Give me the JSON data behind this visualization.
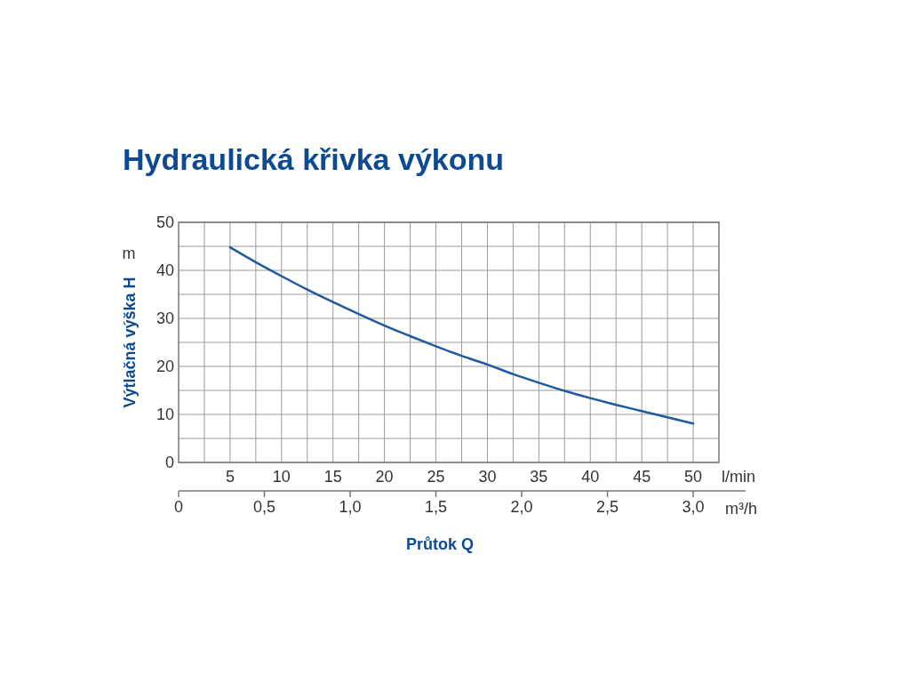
{
  "chart_data": {
    "type": "line",
    "title": "Hydraulická křivka výkonu",
    "xlabel": "Průtok Q",
    "ylabel": "Výtlačná výška H",
    "x2label": "m³/h",
    "annotations": [
      "m",
      "l/min"
    ],
    "series": [
      {
        "color": "#1f5a9c",
        "x": [
          5,
          7.5,
          10,
          12.5,
          15,
          17.5,
          20,
          22.5,
          25,
          27.5,
          30,
          32.5,
          35,
          37.5,
          40,
          42.5,
          45,
          47.5,
          50
        ],
        "values": [
          44.8,
          41.7,
          38.8,
          36,
          33.4,
          30.9,
          28.5,
          26.3,
          24.2,
          22.2,
          20.4,
          18.4,
          16.6,
          14.9,
          13.4,
          12,
          10.7,
          9.4,
          8.1
        ]
      }
    ],
    "xlim": [
      0,
      52.5
    ],
    "ylim": [
      0,
      50
    ],
    "x2lim": [
      0,
      3.15
    ],
    "xticks": [
      {
        "value": 2.5,
        "label": null
      },
      5,
      {
        "value": 7.5,
        "label": null
      },
      10,
      {
        "value": 12.5,
        "label": null
      },
      15,
      {
        "value": 17.5,
        "label": null
      },
      20,
      {
        "value": 22.5,
        "label": null
      },
      25,
      {
        "value": 27.5,
        "label": null
      },
      30,
      {
        "value": 32.5,
        "label": null
      },
      35,
      {
        "value": 37.5,
        "label": null
      },
      40,
      {
        "value": 42.5,
        "label": null
      },
      45,
      {
        "value": 47.5,
        "label": null
      },
      50
    ],
    "yticks": [
      0,
      {
        "value": 5,
        "label": null
      },
      10,
      {
        "value": 15,
        "label": null
      },
      20,
      {
        "value": 25,
        "label": null
      },
      30,
      {
        "value": 35,
        "label": null
      },
      40,
      {
        "value": 45,
        "label": null
      },
      50
    ],
    "x2ticks": [
      0,
      {
        "value": 0.5,
        "label": "0,5"
      },
      {
        "value": 1,
        "label": "1,0"
      },
      {
        "value": 1.5,
        "label": "1,5"
      },
      {
        "value": 2,
        "label": "2,0"
      },
      {
        "value": 2.5,
        "label": "2,5"
      },
      {
        "value": 3,
        "label": "3,0"
      }
    ],
    "grid": true,
    "line_style": "solid",
    "marker": "none"
  }
}
